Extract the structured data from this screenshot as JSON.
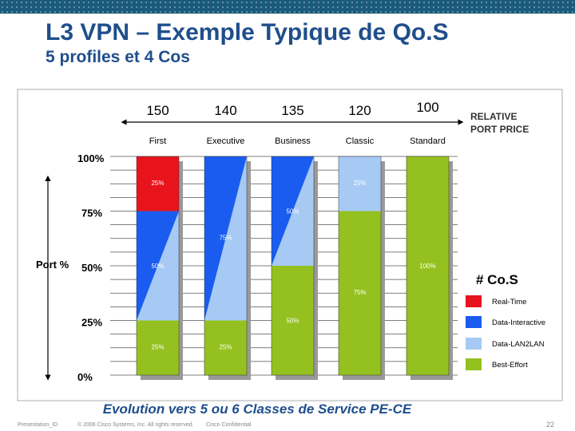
{
  "slide": {
    "title": "L3 VPN – Exemple Typique de Qo.S",
    "subtitle": "5 profiles et 4 Cos",
    "caption": "Evolution vers 5 ou 6 Classes de Service PE-CE",
    "footer": {
      "presentation_id": "Presentation_ID",
      "copyright": "© 2006 Cisco Systems, Inc. All rights reserved.",
      "confidential": "Cisco Confidential",
      "page": "22"
    }
  },
  "colors": {
    "real_time": "#e8141c",
    "data_interactive": "#1a5cf0",
    "data_lan2lan": "#a6caf4",
    "best_effort": "#94c11f",
    "title": "#1f4e8c",
    "header_bar": "#1a5a7a"
  },
  "chart_data": {
    "type": "bar",
    "categories": [
      "First",
      "Executive",
      "Business",
      "Classic",
      "Standard"
    ],
    "prices": [
      "150",
      "140",
      "135",
      "120",
      "100"
    ],
    "price_label": "RELATIVE PORT PRICE",
    "ylabel": "Port %",
    "ytick_labels": [
      "0%",
      "25%",
      "50%",
      "75%",
      "100%"
    ],
    "ylim": [
      0,
      100
    ],
    "legend_title": "# Co.S",
    "legend": [
      {
        "key": "rt",
        "label": "Real-Time",
        "color": "#e8141c"
      },
      {
        "key": "di",
        "label": "Data-Interactive",
        "color": "#1a5cf0"
      },
      {
        "key": "ll",
        "label": "Data-LAN2LAN",
        "color": "#a6caf4"
      },
      {
        "key": "be",
        "label": "Best-Effort",
        "color": "#94c11f"
      }
    ],
    "bars": [
      {
        "category": "First",
        "segments": [
          {
            "key": "be",
            "start": 0,
            "end": 25
          },
          {
            "key": "mix",
            "start": 25,
            "end": 75
          },
          {
            "key": "rt",
            "start": 75,
            "end": 100
          }
        ]
      },
      {
        "category": "Executive",
        "segments": [
          {
            "key": "be",
            "start": 0,
            "end": 25
          },
          {
            "key": "mix",
            "start": 25,
            "end": 100
          }
        ]
      },
      {
        "category": "Business",
        "segments": [
          {
            "key": "be",
            "start": 0,
            "end": 50
          },
          {
            "key": "mix",
            "start": 50,
            "end": 100
          }
        ]
      },
      {
        "category": "Classic",
        "segments": [
          {
            "key": "be",
            "start": 0,
            "end": 75
          },
          {
            "key": "ll",
            "start": 75,
            "end": 100
          }
        ]
      },
      {
        "category": "Standard",
        "segments": [
          {
            "key": "be",
            "start": 0,
            "end": 100
          }
        ]
      }
    ],
    "annotations": [
      {
        "text": "25%",
        "bar": 0,
        "y": 88
      },
      {
        "text": "50%",
        "bar": 0,
        "y": 50
      },
      {
        "text": "25%",
        "bar": 0,
        "y": 13
      },
      {
        "text": "75%",
        "bar": 1,
        "y": 63
      },
      {
        "text": "25%",
        "bar": 1,
        "y": 13
      },
      {
        "text": "50%",
        "bar": 2,
        "y": 75
      },
      {
        "text": "50%",
        "bar": 2,
        "y": 25
      },
      {
        "text": "75%",
        "bar": 3,
        "y": 38
      },
      {
        "text": "25%",
        "bar": 3,
        "y": 88
      },
      {
        "text": "100%",
        "bar": 4,
        "y": 50
      }
    ]
  }
}
